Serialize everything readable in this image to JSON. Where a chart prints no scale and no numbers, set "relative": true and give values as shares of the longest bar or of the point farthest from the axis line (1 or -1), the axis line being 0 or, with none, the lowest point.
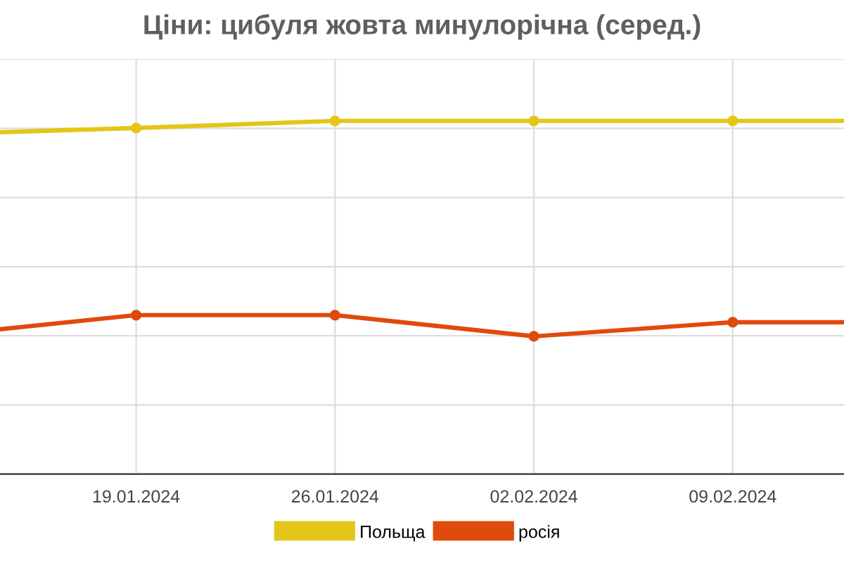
{
  "chart_data": {
    "type": "line",
    "title": "Ціни: цибуля жовта минулорічна (серед.)",
    "x": [
      "2024-01-14T05:00",
      "2024-01-19",
      "2024-01-26",
      "2024-02-02",
      "2024-02-09",
      "2024-02-12T22:00"
    ],
    "xlim": [
      "2024-01-14T05:00",
      "2024-02-12T22:00"
    ],
    "xticks": [
      {
        "value": "2024-01-19",
        "label": "19.01.2024"
      },
      {
        "value": "2024-01-26",
        "label": "26.01.2024"
      },
      {
        "value": "2024-02-02",
        "label": "02.02.2024"
      },
      {
        "value": "2024-02-09",
        "label": "09.02.2024"
      }
    ],
    "relative": true,
    "series": [
      {
        "name": "Польща",
        "color": "#e3c617",
        "values": [
          0.968,
          0.98,
          1.0,
          1.0,
          1.0,
          1.0
        ]
      },
      {
        "name": "росія",
        "color": "#e04a0c",
        "values": [
          0.41,
          0.45,
          0.45,
          0.39,
          0.43,
          0.43
        ]
      }
    ],
    "marker": "circle",
    "line_style": "solid",
    "grid": true,
    "legend": "bottom"
  }
}
